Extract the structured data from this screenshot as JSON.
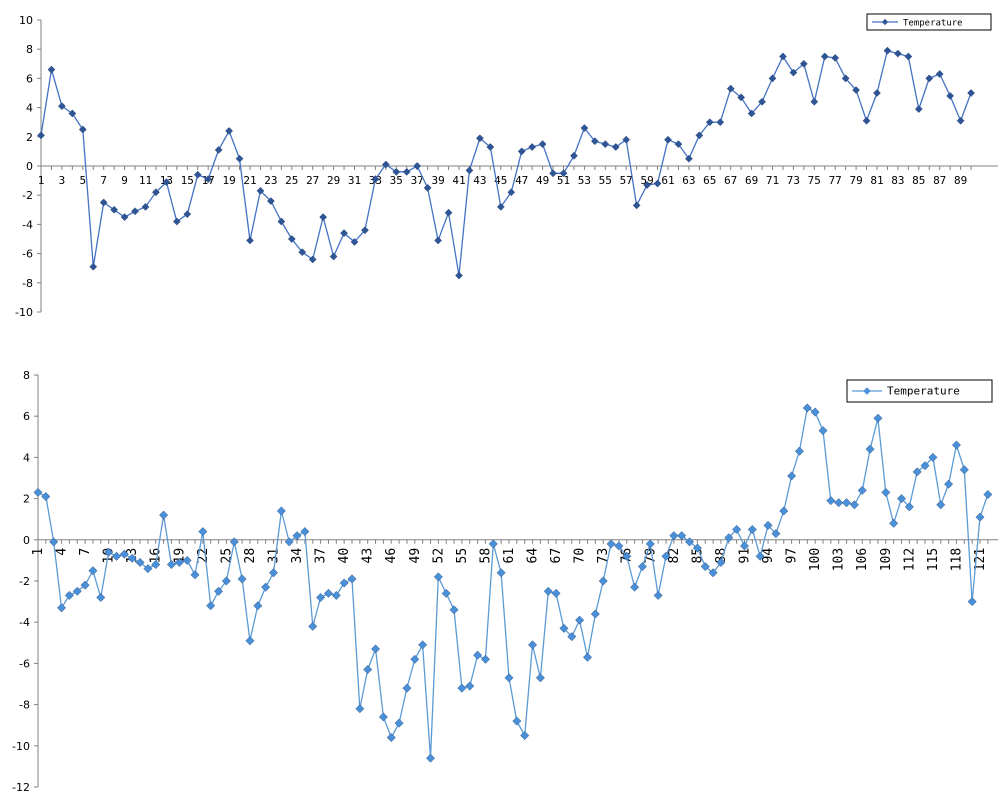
{
  "chart_data": [
    {
      "type": "line",
      "title": "",
      "xlabel": "",
      "ylabel": "",
      "ylim": [
        -10,
        10
      ],
      "yticks": [
        -10,
        -8,
        -6,
        -4,
        -2,
        0,
        2,
        4,
        6,
        8,
        10
      ],
      "x": [
        1,
        2,
        3,
        4,
        5,
        6,
        7,
        8,
        9,
        10,
        11,
        12,
        13,
        14,
        15,
        16,
        17,
        18,
        19,
        20,
        21,
        22,
        23,
        24,
        25,
        26,
        27,
        28,
        29,
        30,
        31,
        32,
        33,
        34,
        35,
        36,
        37,
        38,
        39,
        40,
        41,
        42,
        43,
        44,
        45,
        46,
        47,
        48,
        49,
        50,
        51,
        52,
        53,
        54,
        55,
        56,
        57,
        58,
        59,
        60,
        61,
        62,
        63,
        64,
        65,
        66,
        67,
        68,
        69,
        70,
        71,
        72,
        73,
        74,
        75,
        76,
        77,
        78,
        79,
        80,
        81,
        82,
        83,
        84,
        85,
        86,
        87,
        88,
        89,
        90
      ],
      "x_tick_labels": [
        "1",
        "3",
        "5",
        "7",
        "9",
        "11",
        "13",
        "15",
        "17",
        "19",
        "21",
        "23",
        "25",
        "27",
        "29",
        "31",
        "33",
        "35",
        "37",
        "39",
        "41",
        "43",
        "45",
        "47",
        "49",
        "51",
        "53",
        "55",
        "57",
        "59",
        "61",
        "63",
        "65",
        "67",
        "69",
        "71",
        "73",
        "75",
        "77",
        "79",
        "81",
        "83",
        "85",
        "87",
        "89"
      ],
      "legend": "top-right",
      "series": [
        {
          "name": "Temperature",
          "color": "#4472C4",
          "marker_color": "#2F5597",
          "values": [
            2.1,
            6.6,
            4.1,
            3.6,
            2.5,
            -6.9,
            -2.5,
            -3.0,
            -3.5,
            -3.1,
            -2.8,
            -1.8,
            -1.1,
            -3.8,
            -3.3,
            -0.6,
            -0.9,
            1.1,
            2.4,
            0.5,
            -5.1,
            -1.7,
            -2.4,
            -3.8,
            -5.0,
            -5.9,
            -6.4,
            -3.5,
            -6.2,
            -4.6,
            -5.2,
            -4.4,
            -0.9,
            0.1,
            -0.4,
            -0.4,
            0.0,
            -1.5,
            -5.1,
            -3.2,
            -7.5,
            -0.3,
            1.9,
            1.3,
            -2.8,
            -1.8,
            1.0,
            1.3,
            1.5,
            -0.5,
            -0.5,
            0.7,
            2.6,
            1.7,
            1.5,
            1.3,
            1.8,
            -2.7,
            -1.3,
            -1.2,
            1.8,
            1.5,
            0.5,
            2.1,
            3.0,
            3.0,
            5.3,
            4.7,
            3.6,
            4.4,
            6.0,
            7.5,
            6.4,
            7.0,
            4.4,
            7.5,
            7.4,
            6.0,
            5.2,
            3.1,
            5.0,
            7.9,
            7.7,
            7.5,
            3.9,
            6.0,
            6.3,
            4.8,
            3.1,
            5.0
          ]
        }
      ]
    },
    {
      "type": "line",
      "title": "",
      "xlabel": "",
      "ylabel": "",
      "ylim": [
        -12,
        8
      ],
      "yticks": [
        -12,
        -10,
        -8,
        -6,
        -4,
        -2,
        0,
        2,
        4,
        6,
        8
      ],
      "x": [
        1,
        2,
        3,
        4,
        5,
        6,
        7,
        8,
        9,
        10,
        11,
        12,
        13,
        14,
        15,
        16,
        17,
        18,
        19,
        20,
        21,
        22,
        23,
        24,
        25,
        26,
        27,
        28,
        29,
        30,
        31,
        32,
        33,
        34,
        35,
        36,
        37,
        38,
        39,
        40,
        41,
        42,
        43,
        44,
        45,
        46,
        47,
        48,
        49,
        50,
        51,
        52,
        53,
        54,
        55,
        56,
        57,
        58,
        59,
        60,
        61,
        62,
        63,
        64,
        65,
        66,
        67,
        68,
        69,
        70,
        71,
        72,
        73,
        74,
        75,
        76,
        77,
        78,
        79,
        80,
        81,
        82,
        83,
        84,
        85,
        86,
        87,
        88,
        89,
        90,
        91,
        92,
        93,
        94,
        95,
        96,
        97,
        98,
        99,
        100,
        101,
        102,
        103,
        104,
        105,
        106,
        107,
        108,
        109,
        110,
        111,
        112,
        113,
        114,
        115,
        116,
        117,
        118,
        119,
        120,
        121,
        122
      ],
      "x_tick_labels": [
        "1",
        "4",
        "7",
        "10",
        "13",
        "16",
        "19",
        "22",
        "25",
        "28",
        "31",
        "34",
        "37",
        "40",
        "43",
        "46",
        "49",
        "52",
        "55",
        "58",
        "61",
        "64",
        "67",
        "70",
        "73",
        "76",
        "79",
        "82",
        "85",
        "88",
        "91",
        "94",
        "97",
        "100",
        "103",
        "106",
        "109",
        "112",
        "115",
        "118",
        "121"
      ],
      "legend": "top-right",
      "series": [
        {
          "name": "Temperature",
          "color": "#5B9BD5",
          "marker_color": "#4A90D9",
          "values": [
            2.3,
            2.1,
            -0.1,
            -3.3,
            -2.7,
            -2.5,
            -2.2,
            -1.5,
            -2.8,
            -0.6,
            -0.8,
            -0.7,
            -0.9,
            -1.1,
            -1.4,
            -1.2,
            1.2,
            -1.2,
            -1.1,
            -1.0,
            -1.7,
            0.4,
            -3.2,
            -2.5,
            -2.0,
            -0.1,
            -1.9,
            -4.9,
            -3.2,
            -2.3,
            -1.6,
            1.4,
            -0.1,
            0.2,
            0.4,
            -4.2,
            -2.8,
            -2.6,
            -2.7,
            -2.1,
            -1.9,
            -8.2,
            -6.3,
            -5.3,
            -8.6,
            -9.6,
            -8.9,
            -7.2,
            -5.8,
            -5.1,
            -10.6,
            -1.8,
            -2.6,
            -3.4,
            -7.2,
            -7.1,
            -5.6,
            -5.8,
            -0.2,
            -1.6,
            -6.7,
            -8.8,
            -9.5,
            -5.1,
            -6.7,
            -2.5,
            -2.6,
            -4.3,
            -4.7,
            -3.9,
            -5.7,
            -3.6,
            -2.0,
            -0.2,
            -0.3,
            -0.8,
            -2.3,
            -1.3,
            -0.2,
            -2.7,
            -0.8,
            0.2,
            0.2,
            -0.1,
            -0.4,
            -1.3,
            -1.6,
            -1.1,
            0.1,
            0.5,
            -0.3,
            0.5,
            -0.8,
            0.7,
            0.3,
            1.4,
            3.1,
            4.3,
            6.4,
            6.2,
            5.3,
            1.9,
            1.8,
            1.8,
            1.7,
            2.4,
            4.4,
            5.9,
            2.3,
            0.8,
            2.0,
            1.6,
            3.3,
            3.6,
            4.0,
            1.7,
            2.7,
            4.6,
            3.4,
            -3.0,
            1.1,
            2.2
          ]
        }
      ]
    }
  ]
}
